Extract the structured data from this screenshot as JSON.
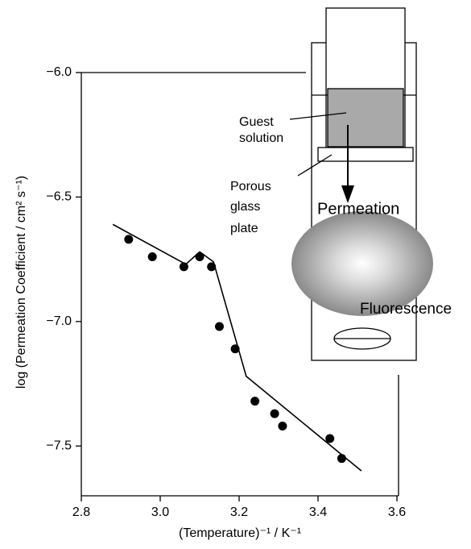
{
  "chart_data": {
    "type": "scatter",
    "x_label": "(Temperature)⁻¹ / K⁻¹",
    "y_label": "log (Permeation Coefficient / cm² s⁻¹)",
    "x": [
      2.92,
      2.98,
      3.06,
      3.1,
      3.13,
      3.15,
      3.19,
      3.24,
      3.29,
      3.31,
      3.43,
      3.46
    ],
    "values": [
      -6.67,
      -6.74,
      -6.78,
      -6.74,
      -6.78,
      -7.02,
      -7.11,
      -7.32,
      -7.37,
      -7.42,
      -7.47,
      -7.55
    ],
    "color": "#000000",
    "fit": {
      "x": [
        2.88,
        3.065,
        3.1,
        3.135,
        3.218,
        3.51
      ],
      "values": [
        -6.61,
        -6.77,
        -6.72,
        -6.76,
        -7.22,
        -7.6
      ]
    },
    "xlim": [
      2.8,
      3.6
    ],
    "xticks": [
      2.8,
      {
        "value": 3,
        "label": "3.0"
      },
      3.2,
      3.4,
      3.6
    ],
    "ylim": [
      -7.7,
      -6.0
    ],
    "yticks": [
      {
        "value": -6,
        "label": "−6.0"
      },
      {
        "value": -6.5,
        "label": "−6.5"
      },
      {
        "value": -7,
        "label": "−7.0"
      },
      {
        "value": -7.5,
        "label": "−7.5"
      }
    ]
  },
  "diagram": {
    "guest": [
      "Guest",
      "solution"
    ],
    "plate": [
      "Porous",
      "glass",
      "plate"
    ],
    "permeation": "Permeation",
    "fluorescence": "Fluorescence"
  }
}
